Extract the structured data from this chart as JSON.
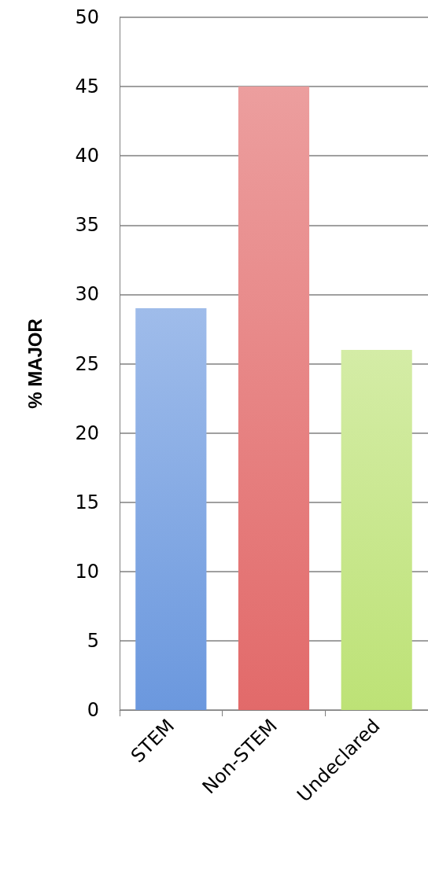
{
  "chart_data": {
    "type": "bar",
    "ylabel": "% MAJOR",
    "categories": [
      "STEM",
      "Non-STEM",
      "Undeclared"
    ],
    "values": [
      29,
      45,
      26
    ],
    "colors": [
      "#6b98de",
      "#e26a6a",
      "#bde276"
    ],
    "ylim": [
      0,
      50
    ],
    "yticks": [
      0,
      5,
      10,
      15,
      20,
      25,
      30,
      35,
      40,
      45,
      50
    ],
    "grid": "y"
  }
}
